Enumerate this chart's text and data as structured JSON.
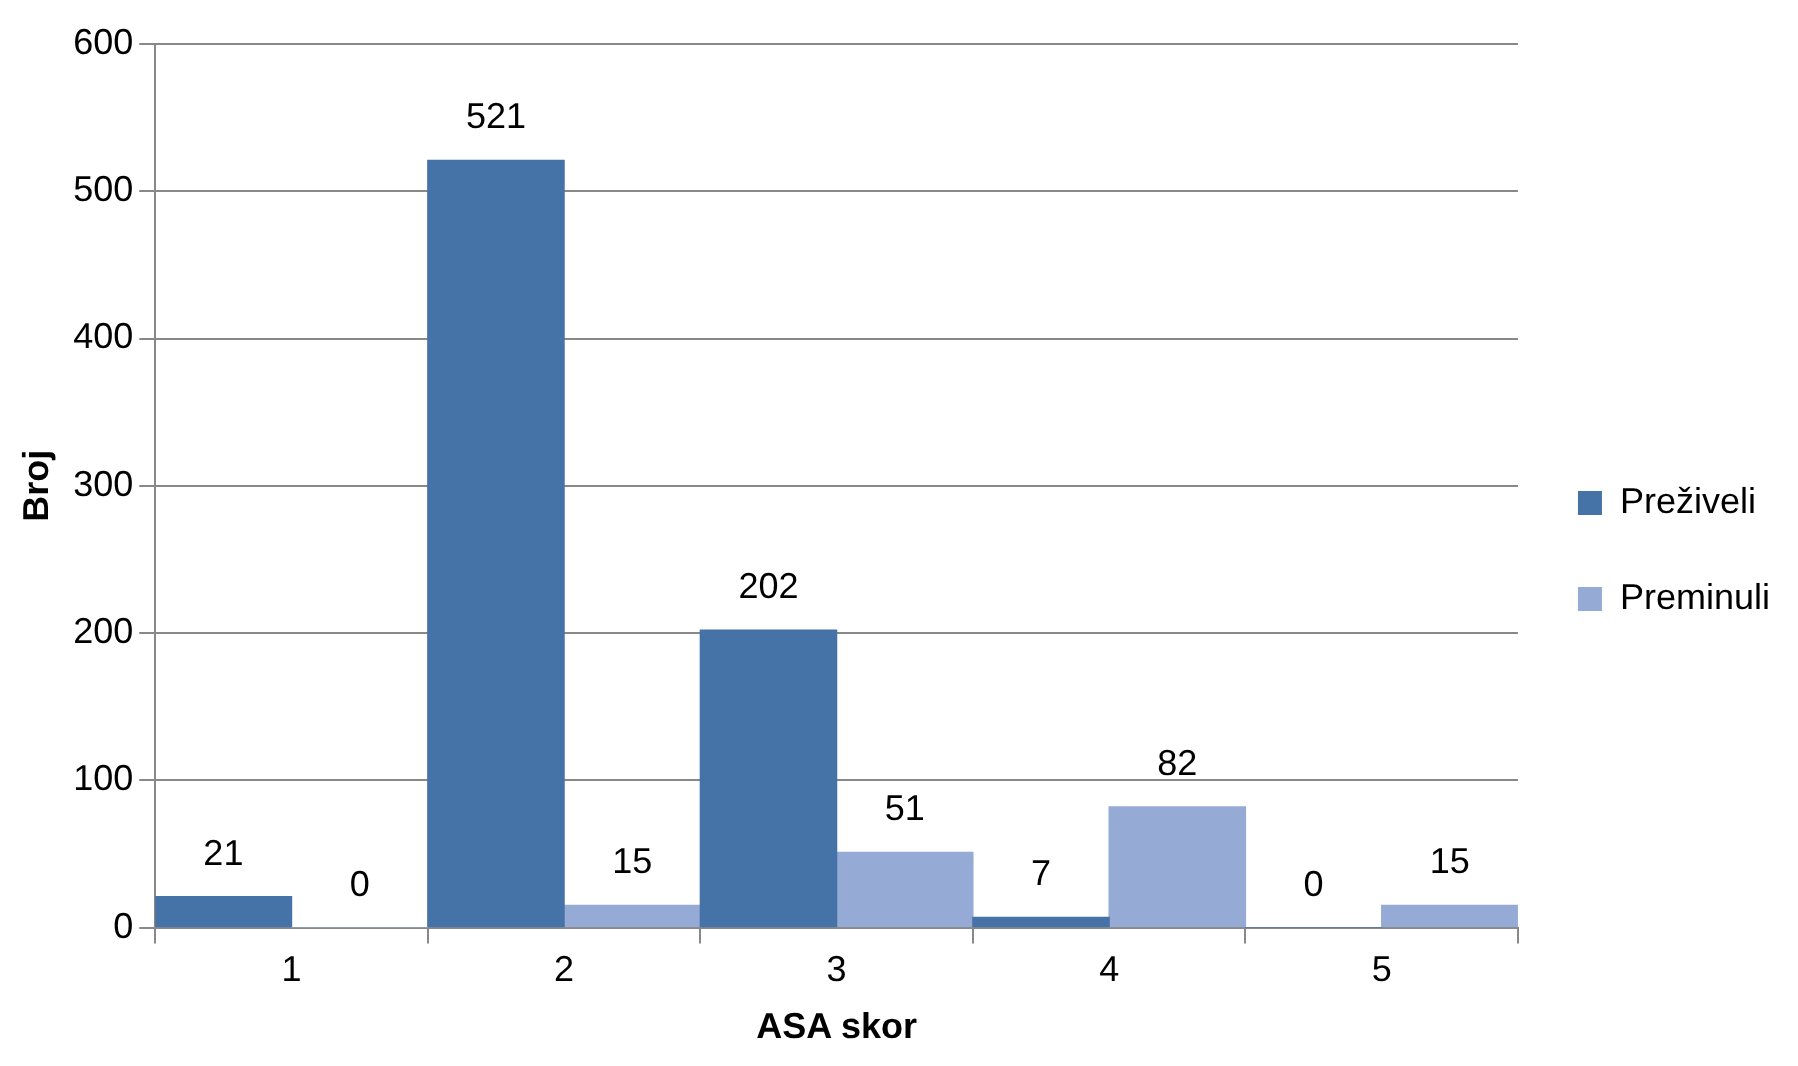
{
  "chart_data": {
    "type": "bar",
    "xlabel": "ASA skor",
    "ylabel": "Broj",
    "categories": [
      "1",
      "2",
      "3",
      "4",
      "5"
    ],
    "series": [
      {
        "name": "Preživeli",
        "color": "#4572a7",
        "values": [
          21,
          521,
          202,
          7,
          0
        ]
      },
      {
        "name": "Preminuli",
        "color": "#95abd5",
        "values": [
          0,
          15,
          51,
          82,
          15
        ]
      }
    ],
    "ylim": [
      0,
      600
    ],
    "yticks": [
      0,
      100,
      200,
      300,
      400,
      500,
      600
    ],
    "grid": "y",
    "legend": "right",
    "data_labels": true
  }
}
